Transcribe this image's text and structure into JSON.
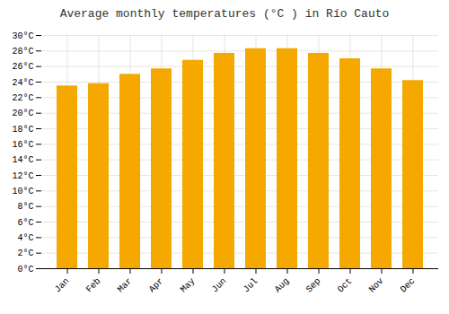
{
  "chart_data": {
    "type": "bar",
    "title": "Average monthly temperatures (°C ) in Río Cauto",
    "categories": [
      "Jan",
      "Feb",
      "Mar",
      "Apr",
      "May",
      "Jun",
      "Jul",
      "Aug",
      "Sep",
      "Oct",
      "Nov",
      "Dec"
    ],
    "values": [
      23.5,
      23.8,
      25.0,
      25.7,
      26.8,
      27.7,
      28.3,
      28.3,
      27.7,
      27.0,
      25.7,
      24.2
    ],
    "color": "#F5A800",
    "ylim": [
      0,
      30
    ],
    "yticks": [
      {
        "value": 0,
        "label": "0°C"
      },
      {
        "value": 2,
        "label": "2°C"
      },
      {
        "value": 4,
        "label": "4°C"
      },
      {
        "value": 6,
        "label": "6°C"
      },
      {
        "value": 8,
        "label": "8°C"
      },
      {
        "value": 10,
        "label": "10°C"
      },
      {
        "value": 12,
        "label": "12°C"
      },
      {
        "value": 14,
        "label": "14°C"
      },
      {
        "value": 16,
        "label": "16°C"
      },
      {
        "value": 18,
        "label": "18°C"
      },
      {
        "value": 20,
        "label": "20°C"
      },
      {
        "value": 22,
        "label": "22°C"
      },
      {
        "value": 24,
        "label": "24°C"
      },
      {
        "value": 26,
        "label": "26°C"
      },
      {
        "value": 28,
        "label": "28°C"
      },
      {
        "value": 30,
        "label": "30°C"
      }
    ],
    "grid": true
  }
}
